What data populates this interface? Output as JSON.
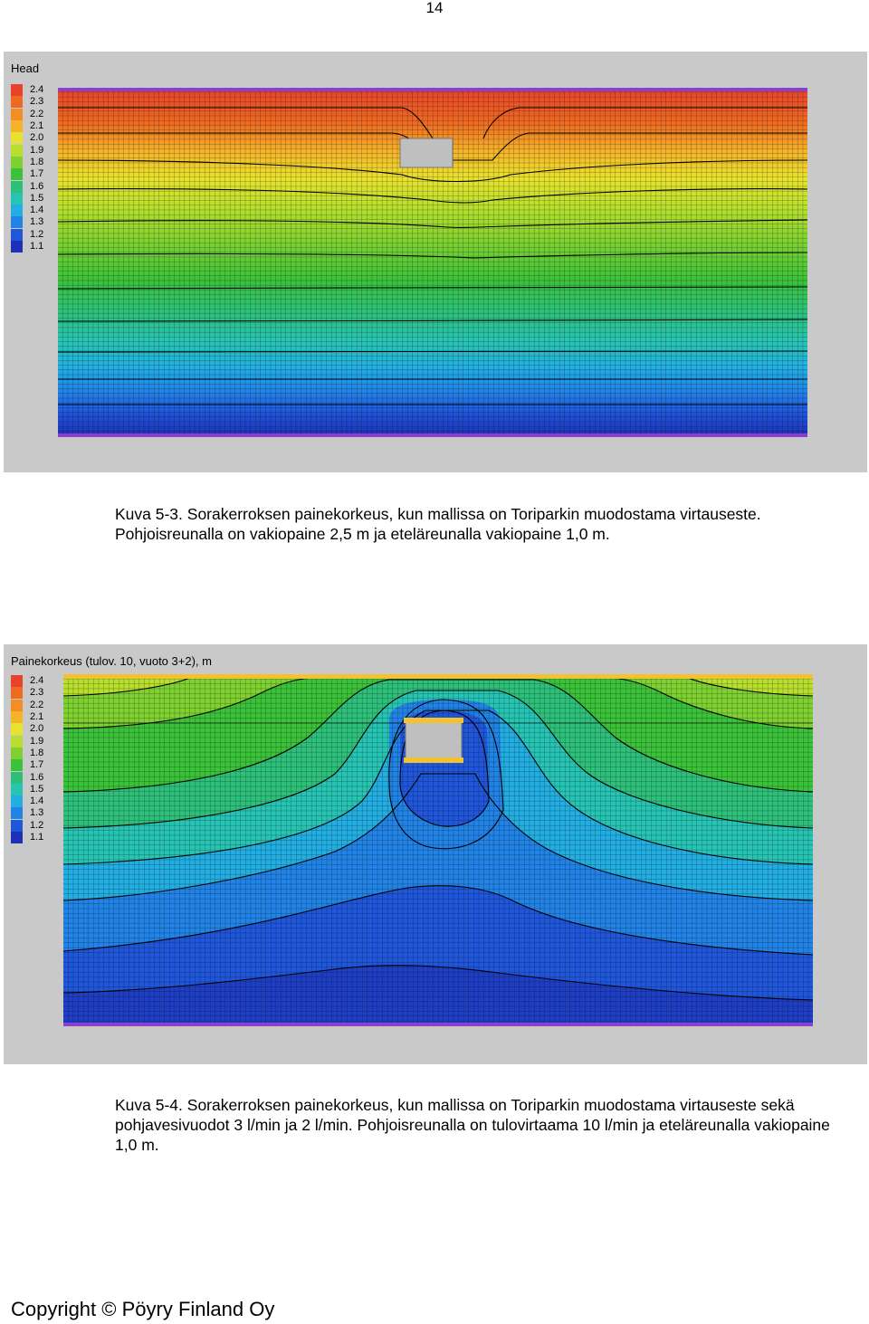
{
  "page": {
    "number": "14",
    "footer": "Copyright © Pöyry Finland Oy"
  },
  "figure1": {
    "title": "Head",
    "legend": [
      {
        "value": "2.4",
        "color": "#e8432a"
      },
      {
        "value": "2.3",
        "color": "#ee6a22"
      },
      {
        "value": "2.2",
        "color": "#f38e24"
      },
      {
        "value": "2.1",
        "color": "#f5b32a"
      },
      {
        "value": "2.0",
        "color": "#e8e22e"
      },
      {
        "value": "1.9",
        "color": "#b9df2e"
      },
      {
        "value": "1.8",
        "color": "#7fd132"
      },
      {
        "value": "1.7",
        "color": "#3cc23a"
      },
      {
        "value": "1.6",
        "color": "#2ec07a"
      },
      {
        "value": "1.5",
        "color": "#27c4b4"
      },
      {
        "value": "1.4",
        "color": "#23aee2"
      },
      {
        "value": "1.3",
        "color": "#2283e6"
      },
      {
        "value": "1.2",
        "color": "#2056da"
      },
      {
        "value": "1.1",
        "color": "#1e2fb8"
      }
    ]
  },
  "caption1": {
    "text": "Kuva 5-3. Sorakerroksen painekorkeus, kun mallissa on Toriparkin muodostama virtauseste. Pohjoisreunalla on vakiopaine 2,5 m ja eteläreunalla vakiopaine 1,0 m."
  },
  "figure2": {
    "title": "Painekorkeus (tulov. 10, vuoto 3+2), m",
    "legend": [
      {
        "value": "2.4",
        "color": "#e8432a"
      },
      {
        "value": "2.3",
        "color": "#ee6a22"
      },
      {
        "value": "2.2",
        "color": "#f38e24"
      },
      {
        "value": "2.1",
        "color": "#f5b32a"
      },
      {
        "value": "2.0",
        "color": "#e8e22e"
      },
      {
        "value": "1.9",
        "color": "#b9df2e"
      },
      {
        "value": "1.8",
        "color": "#7fd132"
      },
      {
        "value": "1.7",
        "color": "#3cc23a"
      },
      {
        "value": "1.6",
        "color": "#2ec07a"
      },
      {
        "value": "1.5",
        "color": "#27c4b4"
      },
      {
        "value": "1.4",
        "color": "#23aee2"
      },
      {
        "value": "1.3",
        "color": "#2283e6"
      },
      {
        "value": "1.2",
        "color": "#2056da"
      },
      {
        "value": "1.1",
        "color": "#1e2fb8"
      }
    ]
  },
  "caption2": {
    "text": "Kuva 5-4. Sorakerroksen painekorkeus, kun mallissa on Toriparkin muodostama virtauseste sekä pohjavesivuodot 3 l/min ja 2 l/min. Pohjoisreunalla on tulovirtaama 10 l/min ja eteläreunalla vakiopaine 1,0 m."
  }
}
